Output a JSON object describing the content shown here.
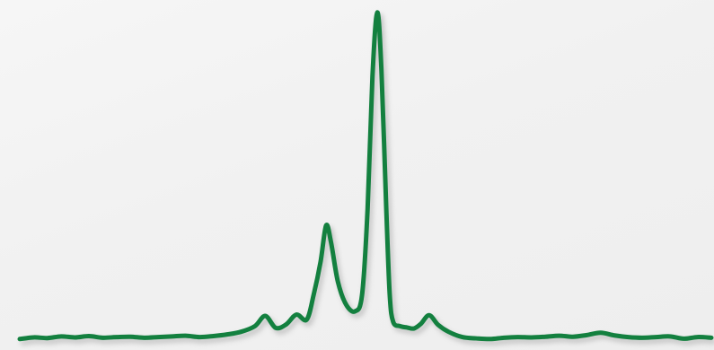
{
  "chart_data": {
    "type": "line",
    "title": "",
    "xlabel": "",
    "ylabel": "",
    "grid": false,
    "legend": "none",
    "axes_visible": false,
    "xlim": [
      0,
      100
    ],
    "ylim": [
      0,
      100
    ],
    "line_color": "#13803f",
    "shadow_color": "#9a9a9a",
    "background": "#f3f3f3",
    "series": [
      {
        "x": [
          0,
          2,
          4,
          6,
          8,
          10,
          12,
          14,
          16,
          18,
          20,
          22,
          24,
          26,
          28,
          30,
          32,
          34,
          35.5,
          37,
          38.5,
          40,
          41.5,
          42.5,
          43.5,
          44.3,
          45,
          46,
          47.2,
          48.5,
          49.5,
          50.3,
          51,
          51.7,
          52.3,
          53,
          53.5,
          54,
          55,
          56,
          57,
          58,
          59.2,
          60.5,
          62,
          64,
          66,
          68,
          70,
          72,
          74,
          76,
          78,
          80,
          82,
          84,
          86,
          88,
          90,
          92,
          94,
          96,
          98,
          100
        ],
        "y": [
          0.6,
          1.1,
          0.9,
          1.4,
          1.1,
          1.5,
          1.0,
          1.2,
          1.3,
          1.0,
          1.2,
          1.4,
          1.6,
          1.2,
          1.5,
          2.0,
          2.8,
          4.5,
          7.6,
          4.0,
          5.0,
          8.0,
          6.5,
          14.0,
          24.0,
          35.0,
          30.0,
          18.0,
          11.0,
          9.0,
          14.0,
          40.0,
          80.0,
          99.5,
          82.0,
          40.0,
          14.0,
          5.8,
          4.5,
          4.1,
          3.8,
          5.2,
          7.8,
          4.9,
          2.8,
          1.2,
          0.8,
          0.6,
          1.0,
          1.2,
          1.1,
          1.3,
          1.6,
          1.3,
          1.8,
          2.5,
          1.7,
          1.2,
          1.0,
          1.2,
          1.4,
          0.7,
          1.2,
          1.0
        ]
      }
    ]
  }
}
